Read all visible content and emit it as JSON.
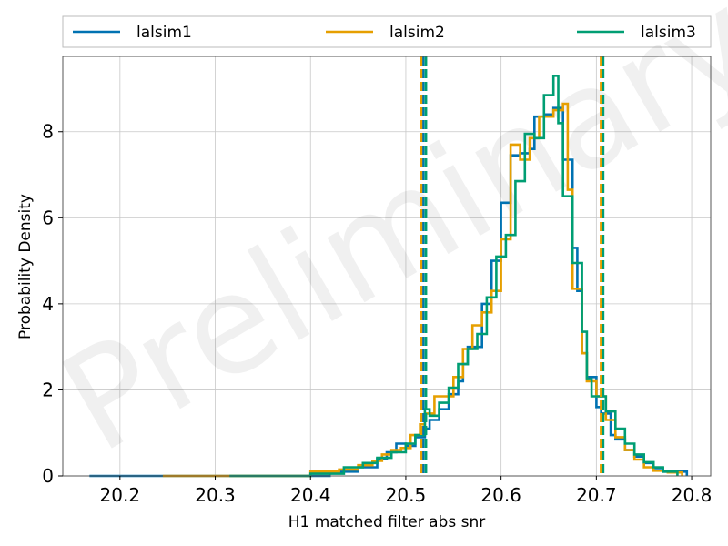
{
  "chart_data": {
    "type": "histogram",
    "xlabel": "H1 matched filter abs snr",
    "ylabel": "Probability Density",
    "xlim": [
      20.14,
      20.82
    ],
    "ylim": [
      0,
      9.75
    ],
    "xticks": [
      "20.2",
      "20.3",
      "20.4",
      "20.5",
      "20.6",
      "20.7",
      "20.8"
    ],
    "yticks": [
      "0",
      "2",
      "4",
      "6",
      "8"
    ],
    "grid": true,
    "legend_position": "top, above plot, 3 columns",
    "watermark": "Preliminary",
    "series": [
      {
        "name": "lalsim1",
        "color": "#0072B2",
        "step_points": [
          [
            20.168,
            0.0
          ],
          [
            20.42,
            0.0
          ],
          [
            20.42,
            0.1
          ],
          [
            20.45,
            0.1
          ],
          [
            20.45,
            0.2
          ],
          [
            20.47,
            0.2
          ],
          [
            20.47,
            0.4
          ],
          [
            20.48,
            0.4
          ],
          [
            20.48,
            0.55
          ],
          [
            20.49,
            0.55
          ],
          [
            20.49,
            0.75
          ],
          [
            20.5,
            0.75
          ],
          [
            20.5,
            0.7
          ],
          [
            20.51,
            0.7
          ],
          [
            20.51,
            0.9
          ],
          [
            20.52,
            0.9
          ],
          [
            20.52,
            1.1
          ],
          [
            20.525,
            1.1
          ],
          [
            20.525,
            1.3
          ],
          [
            20.535,
            1.3
          ],
          [
            20.535,
            1.55
          ],
          [
            20.545,
            1.55
          ],
          [
            20.545,
            1.9
          ],
          [
            20.555,
            1.9
          ],
          [
            20.555,
            2.2
          ],
          [
            20.56,
            2.2
          ],
          [
            20.56,
            2.6
          ],
          [
            20.565,
            2.6
          ],
          [
            20.565,
            3.0
          ],
          [
            20.58,
            3.0
          ],
          [
            20.58,
            4.0
          ],
          [
            20.59,
            4.0
          ],
          [
            20.59,
            5.0
          ],
          [
            20.6,
            5.0
          ],
          [
            20.6,
            6.35
          ],
          [
            20.61,
            6.35
          ],
          [
            20.61,
            7.45
          ],
          [
            20.62,
            7.45
          ],
          [
            20.62,
            7.5
          ],
          [
            20.63,
            7.5
          ],
          [
            20.63,
            7.6
          ],
          [
            20.635,
            7.6
          ],
          [
            20.635,
            8.35
          ],
          [
            20.645,
            8.35
          ],
          [
            20.645,
            8.4
          ],
          [
            20.655,
            8.4
          ],
          [
            20.655,
            8.55
          ],
          [
            20.665,
            8.55
          ],
          [
            20.665,
            7.35
          ],
          [
            20.675,
            7.35
          ],
          [
            20.675,
            5.3
          ],
          [
            20.68,
            5.3
          ],
          [
            20.68,
            4.3
          ],
          [
            20.685,
            4.3
          ],
          [
            20.685,
            2.85
          ],
          [
            20.69,
            2.85
          ],
          [
            20.69,
            2.3
          ],
          [
            20.7,
            2.3
          ],
          [
            20.7,
            1.6
          ],
          [
            20.705,
            1.6
          ],
          [
            20.705,
            1.45
          ],
          [
            20.715,
            1.45
          ],
          [
            20.715,
            0.95
          ],
          [
            20.72,
            0.95
          ],
          [
            20.72,
            0.85
          ],
          [
            20.73,
            0.85
          ],
          [
            20.73,
            0.6
          ],
          [
            20.74,
            0.6
          ],
          [
            20.74,
            0.45
          ],
          [
            20.75,
            0.45
          ],
          [
            20.75,
            0.3
          ],
          [
            20.76,
            0.3
          ],
          [
            20.76,
            0.18
          ],
          [
            20.77,
            0.18
          ],
          [
            20.77,
            0.1
          ],
          [
            20.795,
            0.1
          ],
          [
            20.795,
            0.0
          ]
        ],
        "vlines": [
          20.518,
          20.706
        ]
      },
      {
        "name": "lalsim2",
        "color": "#E69F00",
        "step_points": [
          [
            20.245,
            0.0
          ],
          [
            20.4,
            0.0
          ],
          [
            20.4,
            0.1
          ],
          [
            20.43,
            0.1
          ],
          [
            20.43,
            0.15
          ],
          [
            20.45,
            0.15
          ],
          [
            20.45,
            0.25
          ],
          [
            20.465,
            0.25
          ],
          [
            20.465,
            0.35
          ],
          [
            20.475,
            0.35
          ],
          [
            20.475,
            0.5
          ],
          [
            20.485,
            0.5
          ],
          [
            20.485,
            0.6
          ],
          [
            20.495,
            0.6
          ],
          [
            20.495,
            0.65
          ],
          [
            20.505,
            0.65
          ],
          [
            20.505,
            0.95
          ],
          [
            20.515,
            0.95
          ],
          [
            20.515,
            1.2
          ],
          [
            20.52,
            1.2
          ],
          [
            20.52,
            1.45
          ],
          [
            20.53,
            1.45
          ],
          [
            20.53,
            1.85
          ],
          [
            20.54,
            1.85
          ],
          [
            20.54,
            1.85
          ],
          [
            20.55,
            1.85
          ],
          [
            20.55,
            2.3
          ],
          [
            20.56,
            2.3
          ],
          [
            20.56,
            2.95
          ],
          [
            20.57,
            2.95
          ],
          [
            20.57,
            3.5
          ],
          [
            20.58,
            3.5
          ],
          [
            20.58,
            3.8
          ],
          [
            20.59,
            3.8
          ],
          [
            20.59,
            4.3
          ],
          [
            20.6,
            4.3
          ],
          [
            20.6,
            5.5
          ],
          [
            20.61,
            5.5
          ],
          [
            20.61,
            7.7
          ],
          [
            20.62,
            7.7
          ],
          [
            20.62,
            7.35
          ],
          [
            20.63,
            7.35
          ],
          [
            20.63,
            7.85
          ],
          [
            20.64,
            7.85
          ],
          [
            20.64,
            8.35
          ],
          [
            20.655,
            8.35
          ],
          [
            20.655,
            8.5
          ],
          [
            20.665,
            8.5
          ],
          [
            20.665,
            8.65
          ],
          [
            20.67,
            8.65
          ],
          [
            20.67,
            6.65
          ],
          [
            20.675,
            6.65
          ],
          [
            20.675,
            4.35
          ],
          [
            20.685,
            4.35
          ],
          [
            20.685,
            2.85
          ],
          [
            20.69,
            2.85
          ],
          [
            20.69,
            2.2
          ],
          [
            20.7,
            2.2
          ],
          [
            20.7,
            1.85
          ],
          [
            20.71,
            1.85
          ],
          [
            20.71,
            1.3
          ],
          [
            20.72,
            1.3
          ],
          [
            20.72,
            0.9
          ],
          [
            20.73,
            0.9
          ],
          [
            20.73,
            0.6
          ],
          [
            20.74,
            0.6
          ],
          [
            20.74,
            0.38
          ],
          [
            20.75,
            0.38
          ],
          [
            20.75,
            0.2
          ],
          [
            20.76,
            0.2
          ],
          [
            20.76,
            0.12
          ],
          [
            20.775,
            0.12
          ],
          [
            20.775,
            0.08
          ],
          [
            20.79,
            0.08
          ],
          [
            20.79,
            0.0
          ]
        ],
        "vlines": [
          20.516,
          20.705
        ]
      },
      {
        "name": "lalsim3",
        "color": "#009E73",
        "step_points": [
          [
            20.315,
            0.0
          ],
          [
            20.4,
            0.0
          ],
          [
            20.4,
            0.05
          ],
          [
            20.435,
            0.05
          ],
          [
            20.435,
            0.2
          ],
          [
            20.455,
            0.2
          ],
          [
            20.455,
            0.3
          ],
          [
            20.47,
            0.3
          ],
          [
            20.47,
            0.42
          ],
          [
            20.485,
            0.42
          ],
          [
            20.485,
            0.55
          ],
          [
            20.5,
            0.55
          ],
          [
            20.5,
            0.75
          ],
          [
            20.51,
            0.75
          ],
          [
            20.51,
            0.95
          ],
          [
            20.52,
            0.95
          ],
          [
            20.52,
            1.55
          ],
          [
            20.525,
            1.55
          ],
          [
            20.525,
            1.4
          ],
          [
            20.535,
            1.4
          ],
          [
            20.535,
            1.7
          ],
          [
            20.545,
            1.7
          ],
          [
            20.545,
            2.05
          ],
          [
            20.555,
            2.05
          ],
          [
            20.555,
            2.6
          ],
          [
            20.565,
            2.6
          ],
          [
            20.565,
            2.95
          ],
          [
            20.575,
            2.95
          ],
          [
            20.575,
            3.3
          ],
          [
            20.585,
            3.3
          ],
          [
            20.585,
            4.15
          ],
          [
            20.595,
            4.15
          ],
          [
            20.595,
            5.1
          ],
          [
            20.605,
            5.1
          ],
          [
            20.605,
            5.6
          ],
          [
            20.615,
            5.6
          ],
          [
            20.615,
            6.85
          ],
          [
            20.625,
            6.85
          ],
          [
            20.625,
            7.95
          ],
          [
            20.635,
            7.95
          ],
          [
            20.635,
            7.85
          ],
          [
            20.645,
            7.85
          ],
          [
            20.645,
            8.85
          ],
          [
            20.655,
            8.85
          ],
          [
            20.655,
            9.3
          ],
          [
            20.66,
            9.3
          ],
          [
            20.66,
            8.2
          ],
          [
            20.665,
            8.2
          ],
          [
            20.665,
            6.5
          ],
          [
            20.675,
            6.5
          ],
          [
            20.675,
            4.95
          ],
          [
            20.685,
            4.95
          ],
          [
            20.685,
            3.35
          ],
          [
            20.69,
            3.35
          ],
          [
            20.69,
            2.25
          ],
          [
            20.695,
            2.25
          ],
          [
            20.695,
            1.85
          ],
          [
            20.7,
            1.85
          ],
          [
            20.7,
            1.85
          ],
          [
            20.71,
            1.85
          ],
          [
            20.71,
            1.5
          ],
          [
            20.72,
            1.5
          ],
          [
            20.72,
            1.1
          ],
          [
            20.73,
            1.1
          ],
          [
            20.73,
            0.75
          ],
          [
            20.74,
            0.75
          ],
          [
            20.74,
            0.5
          ],
          [
            20.75,
            0.5
          ],
          [
            20.75,
            0.32
          ],
          [
            20.76,
            0.32
          ],
          [
            20.76,
            0.2
          ],
          [
            20.77,
            0.2
          ],
          [
            20.77,
            0.1
          ],
          [
            20.785,
            0.1
          ],
          [
            20.785,
            0.0
          ]
        ],
        "vlines": [
          20.521,
          20.707
        ]
      }
    ]
  }
}
